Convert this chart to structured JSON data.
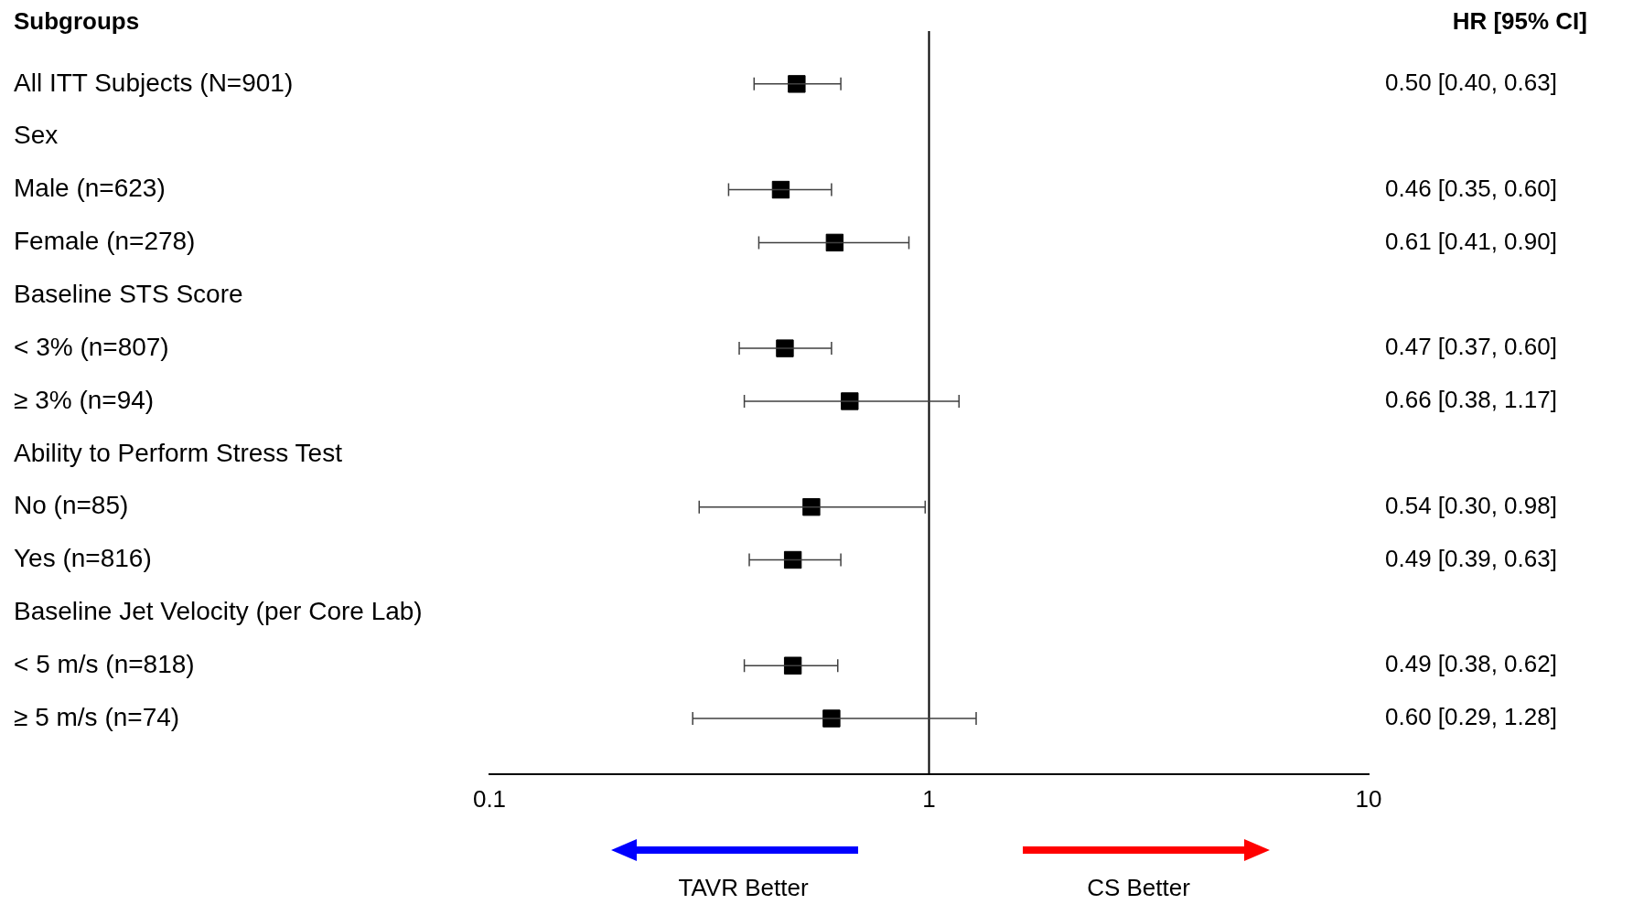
{
  "chart_data": {
    "type": "scatter",
    "orientation": "horizontal",
    "ylabel": "Subgroups",
    "y2label": "HR [95% CI]",
    "categories": [
      "All ITT Subjects (N=901)",
      "Sex",
      "Male (n=623)",
      "Female (n=278)",
      "Baseline STS Score",
      "< 3% (n=807)",
      "≥ 3% (n=94)",
      "Ability to Perform Stress Test",
      "No (n=85)",
      "Yes (n=816)",
      "Baseline Jet Velocity (per Core Lab)",
      "< 5 m/s (n=818)",
      "≥ 5 m/s (n=74)"
    ],
    "values": [
      0.5,
      null,
      0.46,
      0.61,
      null,
      0.47,
      0.66,
      null,
      0.54,
      0.49,
      null,
      0.49,
      0.6
    ],
    "errors": [
      [
        0.4,
        0.63
      ],
      null,
      [
        0.35,
        0.6
      ],
      [
        0.41,
        0.9
      ],
      null,
      [
        0.37,
        0.6
      ],
      [
        0.38,
        1.17
      ],
      null,
      [
        0.3,
        0.98
      ],
      [
        0.39,
        0.63
      ],
      null,
      [
        0.38,
        0.62
      ],
      [
        0.29,
        1.28
      ]
    ],
    "value_labels": [
      "0.50 [0.40, 0.63]",
      null,
      "0.46 [0.35, 0.60]",
      "0.61 [0.41, 0.90]",
      null,
      "0.47 [0.37, 0.60]",
      "0.66 [0.38, 1.17]",
      null,
      "0.54 [0.30, 0.98]",
      "0.49 [0.39, 0.63]",
      null,
      "0.49 [0.38, 0.62]",
      "0.60 [0.29, 1.28]"
    ],
    "color": "#000000",
    "marker": "square",
    "log": "x",
    "xlim": [
      0.1,
      10
    ],
    "xticks": [
      0.1,
      1,
      10
    ],
    "ref_lines": [
      {
        "axis": "x",
        "value": 1,
        "color": "#000000"
      }
    ],
    "annotations": [
      "TAVR Better",
      "CS Better"
    ],
    "grid": false,
    "legend": false
  }
}
